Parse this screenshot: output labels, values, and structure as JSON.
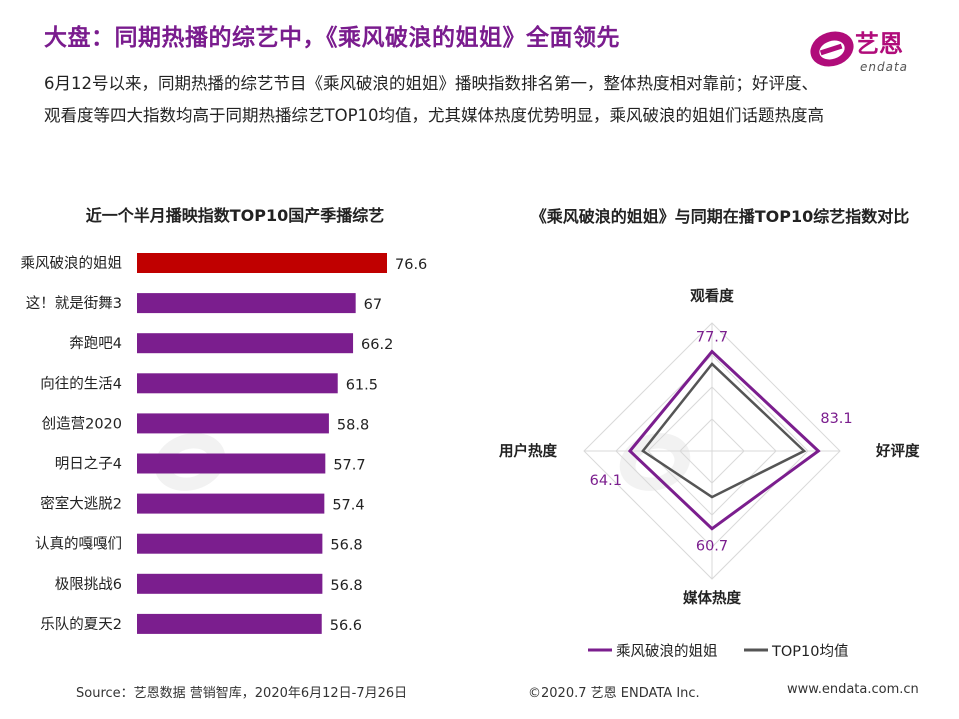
{
  "header": {
    "title": "大盘：同期热播的综艺中，《乘风破浪的姐姐》全面领先",
    "logo_text": "艺恩",
    "logo_sub": "endata",
    "description": "6月12号以来，同期热播的综艺节目《乘风破浪的姐姐》播映指数排名第一，整体热度相对靠前；好评度、观看度等四大指数均高于同期热播综艺TOP10均值，尤其媒体热度优势明显，乘风破浪的姐姐们话题热度高"
  },
  "colors": {
    "highlight": "#c00000",
    "bar": "#7b1e8e",
    "avg": "#555555",
    "title": "#7a1c8e"
  },
  "chart_data": [
    {
      "type": "bar",
      "orientation": "horizontal",
      "title": "近一个半月播映指数TOP10国产季播综艺",
      "categories": [
        "乘风破浪的姐姐",
        "这！就是街舞3",
        "奔跑吧4",
        "向往的生活4",
        "创造营2020",
        "明日之子4",
        "密室大逃脱2",
        "认真的嘎嘎们",
        "极限挑战6",
        "乐队的夏天2"
      ],
      "values": [
        76.6,
        67,
        66.2,
        61.5,
        58.8,
        57.7,
        57.4,
        56.8,
        56.8,
        56.6
      ],
      "value_labels": [
        "76.6",
        "67",
        "66.2",
        "61.5",
        "58.8",
        "57.7",
        "57.4",
        "56.8",
        "56.8",
        "56.6"
      ],
      "highlight_index": 0
    },
    {
      "type": "radar",
      "title": "《乘风破浪的姐姐》与同期在播TOP10综艺指数对比",
      "axes": [
        "观看度",
        "好评度",
        "媒体热度",
        "用户热度"
      ],
      "series": [
        {
          "name": "乘风破浪的姐姐",
          "values": [
            77.7,
            83.1,
            60.7,
            64.1
          ],
          "labels": [
            "77.7",
            "83.1",
            "60.7",
            "64.1"
          ],
          "color": "#7b1e8e"
        },
        {
          "name": "TOP10均值",
          "values": [
            68.0,
            72.0,
            36.0,
            54.0
          ],
          "color": "#555555"
        }
      ],
      "legend_position": "bottom"
    }
  ],
  "footer": {
    "source": "Source：艺恩数据  营销智库，2020年6月12日-7月26日",
    "copyright": "©2020.7 艺恩 ENDATA Inc.",
    "website": "www.endata.com.cn"
  }
}
